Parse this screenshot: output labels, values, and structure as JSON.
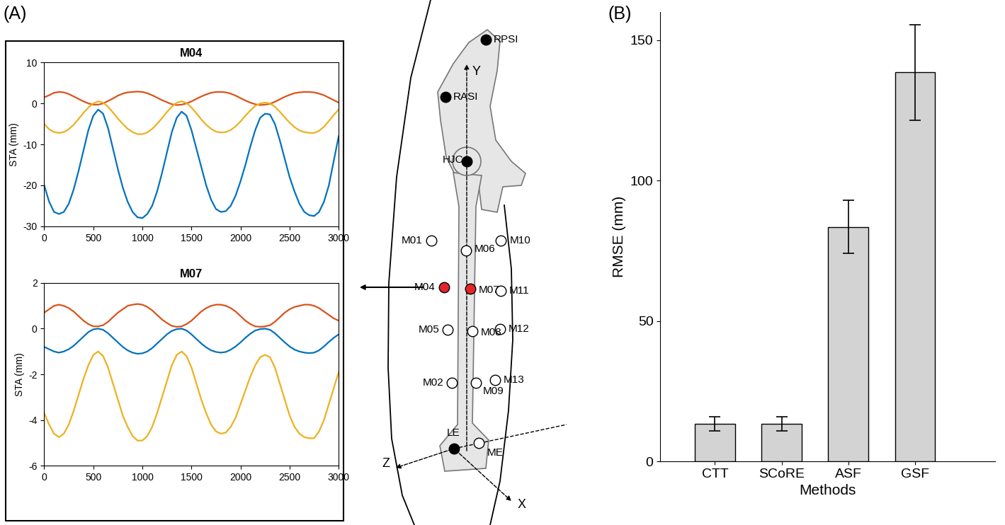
{
  "panels": [
    "(A)",
    "(B)"
  ],
  "chart_data": [
    {
      "type": "line",
      "title": "M04",
      "y_label": "STA (mm)",
      "x": [
        0,
        50,
        100,
        150,
        200,
        250,
        300,
        350,
        400,
        450,
        500,
        550,
        600,
        650,
        700,
        750,
        800,
        850,
        900,
        950,
        1000,
        1050,
        1100,
        1150,
        1200,
        1250,
        1300,
        1350,
        1400,
        1450,
        1500,
        1550,
        1600,
        1650,
        1700,
        1750,
        1800,
        1850,
        1900,
        1950,
        2000,
        2050,
        2100,
        2150,
        2200,
        2250,
        2300,
        2350,
        2400,
        2450,
        2500,
        2550,
        2600,
        2650,
        2700,
        2750,
        2800,
        2850,
        2900,
        2950,
        3000
      ],
      "xlim": [
        0,
        3000
      ],
      "xticks": [
        0,
        500,
        1000,
        1500,
        2000,
        2500,
        3000
      ],
      "ylim": [
        -30,
        10
      ],
      "yticks": [
        -30,
        -20,
        -10,
        0,
        10
      ],
      "series": [
        {
          "color": "#0072bd",
          "values": [
            -20,
            -24,
            -26.5,
            -27,
            -26.5,
            -24.5,
            -21,
            -16.5,
            -11.5,
            -6.5,
            -3,
            -1.5,
            -2.5,
            -6,
            -11,
            -16,
            -20.5,
            -24,
            -26.5,
            -27.8,
            -28,
            -27,
            -25,
            -21.5,
            -17,
            -12,
            -7,
            -3.5,
            -2,
            -3,
            -6.5,
            -11,
            -15.5,
            -20,
            -23.5,
            -25.8,
            -26.5,
            -26.3,
            -25,
            -22.5,
            -19,
            -15,
            -10.5,
            -6.5,
            -3.5,
            -2.5,
            -2.7,
            -5,
            -9,
            -13.5,
            -18,
            -21.5,
            -24.5,
            -26.5,
            -27.3,
            -27.5,
            -26.5,
            -24,
            -20,
            -14,
            -8
          ]
        },
        {
          "color": "#d95319",
          "values": [
            1.5,
            2,
            2.6,
            2.8,
            2.7,
            2.3,
            1.7,
            1.1,
            0.5,
            0,
            -0.3,
            -0.3,
            0,
            0.6,
            1.2,
            1.9,
            2.4,
            2.7,
            2.8,
            2.9,
            2.8,
            2.5,
            2,
            1.4,
            0.8,
            0.3,
            -0.2,
            -0.4,
            -0.3,
            0,
            0.5,
            1.1,
            1.7,
            2.2,
            2.6,
            2.8,
            2.8,
            2.7,
            2.4,
            1.9,
            1.3,
            0.7,
            0.2,
            -0.2,
            -0.4,
            -0.3,
            -0.1,
            0.4,
            1,
            1.6,
            2.1,
            2.5,
            2.7,
            2.8,
            2.8,
            2.7,
            2.4,
            2,
            1.4,
            0.8,
            0.2
          ]
        },
        {
          "color": "#edb120",
          "values": [
            -5,
            -6.3,
            -7,
            -7.2,
            -7,
            -6.3,
            -5.2,
            -3.8,
            -2.3,
            -1,
            0,
            0.5,
            0.2,
            -0.8,
            -2.2,
            -3.7,
            -5,
            -6.2,
            -7,
            -7.5,
            -7.5,
            -7.1,
            -6.2,
            -5,
            -3.6,
            -2.1,
            -0.8,
            0.2,
            0.5,
            0.1,
            -1,
            -2.4,
            -3.9,
            -5.2,
            -6.2,
            -6.9,
            -7.1,
            -7,
            -6.5,
            -5.6,
            -4.4,
            -3,
            -1.7,
            -0.6,
            0,
            0.2,
            0,
            -0.8,
            -2,
            -3.4,
            -4.7,
            -5.8,
            -6.6,
            -7,
            -7.2,
            -7.2,
            -6.7,
            -5.7,
            -4.3,
            -2.8,
            -1.5
          ]
        }
      ]
    },
    {
      "type": "line",
      "title": "M07",
      "y_label": "STA (mm)",
      "x": [
        0,
        50,
        100,
        150,
        200,
        250,
        300,
        350,
        400,
        450,
        500,
        550,
        600,
        650,
        700,
        750,
        800,
        850,
        900,
        950,
        1000,
        1050,
        1100,
        1150,
        1200,
        1250,
        1300,
        1350,
        1400,
        1450,
        1500,
        1550,
        1600,
        1650,
        1700,
        1750,
        1800,
        1850,
        1900,
        1950,
        2000,
        2050,
        2100,
        2150,
        2200,
        2250,
        2300,
        2350,
        2400,
        2450,
        2500,
        2550,
        2600,
        2650,
        2700,
        2750,
        2800,
        2850,
        2900,
        2950,
        3000
      ],
      "xlim": [
        0,
        3000
      ],
      "xticks": [
        0,
        500,
        1000,
        1500,
        2000,
        2500,
        3000
      ],
      "ylim": [
        -6,
        2
      ],
      "yticks": [
        -6,
        -4,
        -2,
        0,
        2
      ],
      "series": [
        {
          "color": "#0072bd",
          "values": [
            -0.8,
            -0.9,
            -1,
            -1.05,
            -1,
            -0.9,
            -0.75,
            -0.55,
            -0.35,
            -0.15,
            -0.03,
            0,
            -0.05,
            -0.2,
            -0.4,
            -0.6,
            -0.8,
            -0.95,
            -1.05,
            -1.1,
            -1.08,
            -1,
            -0.85,
            -0.65,
            -0.45,
            -0.25,
            -0.1,
            -0.02,
            0,
            -0.08,
            -0.25,
            -0.45,
            -0.65,
            -0.82,
            -0.95,
            -1.02,
            -1.05,
            -1.02,
            -0.92,
            -0.78,
            -0.6,
            -0.4,
            -0.22,
            -0.08,
            -0.02,
            0,
            -0.05,
            -0.2,
            -0.4,
            -0.6,
            -0.78,
            -0.92,
            -1,
            -1.05,
            -1.07,
            -1.05,
            -0.95,
            -0.78,
            -0.58,
            -0.4,
            -0.25
          ]
        },
        {
          "color": "#d95319",
          "values": [
            0.7,
            0.85,
            1,
            1.05,
            1,
            0.9,
            0.75,
            0.55,
            0.35,
            0.2,
            0.1,
            0.1,
            0.15,
            0.3,
            0.5,
            0.7,
            0.85,
            1,
            1.05,
            1.08,
            1.05,
            0.95,
            0.8,
            0.6,
            0.4,
            0.25,
            0.12,
            0.08,
            0.1,
            0.2,
            0.35,
            0.55,
            0.75,
            0.9,
            1,
            1.05,
            1.05,
            1,
            0.9,
            0.75,
            0.55,
            0.35,
            0.2,
            0.1,
            0.08,
            0.1,
            0.15,
            0.3,
            0.5,
            0.7,
            0.85,
            0.95,
            1,
            1.05,
            1.05,
            1,
            0.9,
            0.75,
            0.6,
            0.45,
            0.35
          ]
        },
        {
          "color": "#edb120",
          "values": [
            -3.7,
            -4.2,
            -4.6,
            -4.75,
            -4.6,
            -4.2,
            -3.6,
            -2.9,
            -2.2,
            -1.6,
            -1.15,
            -1,
            -1.2,
            -1.7,
            -2.4,
            -3.1,
            -3.8,
            -4.3,
            -4.7,
            -4.9,
            -4.9,
            -4.7,
            -4.3,
            -3.7,
            -3,
            -2.3,
            -1.6,
            -1.15,
            -1,
            -1.2,
            -1.7,
            -2.4,
            -3.1,
            -3.7,
            -4.2,
            -4.5,
            -4.6,
            -4.55,
            -4.3,
            -3.9,
            -3.3,
            -2.7,
            -2.1,
            -1.6,
            -1.25,
            -1.15,
            -1.25,
            -1.7,
            -2.4,
            -3.1,
            -3.8,
            -4.3,
            -4.6,
            -4.75,
            -4.8,
            -4.8,
            -4.5,
            -4,
            -3.3,
            -2.6,
            -1.9
          ]
        }
      ]
    },
    {
      "type": "bar",
      "x_label": "Methods",
      "y_label": "RMSE (mm)",
      "categories": [
        "CTT",
        "SCoRE",
        "ASF",
        "GSF"
      ],
      "values": [
        13.5,
        13.5,
        83.5,
        138.5
      ],
      "errors": [
        2.5,
        2.5,
        9.5,
        17
      ],
      "color": "#d3d3d3",
      "ylim": [
        0,
        160
      ],
      "yticks": [
        0,
        50,
        100,
        150
      ]
    }
  ],
  "diagram": {
    "landmarks": [
      {
        "label": "RPSI",
        "color": "black"
      },
      {
        "label": "RASI",
        "color": "black"
      },
      {
        "label": "HJC",
        "color": "black"
      },
      {
        "label": "M01",
        "color": "white"
      },
      {
        "label": "M04",
        "color": "#e3242b"
      },
      {
        "label": "M05",
        "color": "white"
      },
      {
        "label": "M02",
        "color": "white"
      },
      {
        "label": "M06",
        "color": "white"
      },
      {
        "label": "M07",
        "color": "#e3242b"
      },
      {
        "label": "M08",
        "color": "white"
      },
      {
        "label": "M09",
        "color": "white"
      },
      {
        "label": "M10",
        "color": "white"
      },
      {
        "label": "M11",
        "color": "white"
      },
      {
        "label": "M12",
        "color": "white"
      },
      {
        "label": "M13",
        "color": "white"
      },
      {
        "label": "LE",
        "color": "black"
      },
      {
        "label": "ME",
        "color": "white"
      }
    ],
    "axes": [
      "Y",
      "Z",
      "X"
    ]
  }
}
